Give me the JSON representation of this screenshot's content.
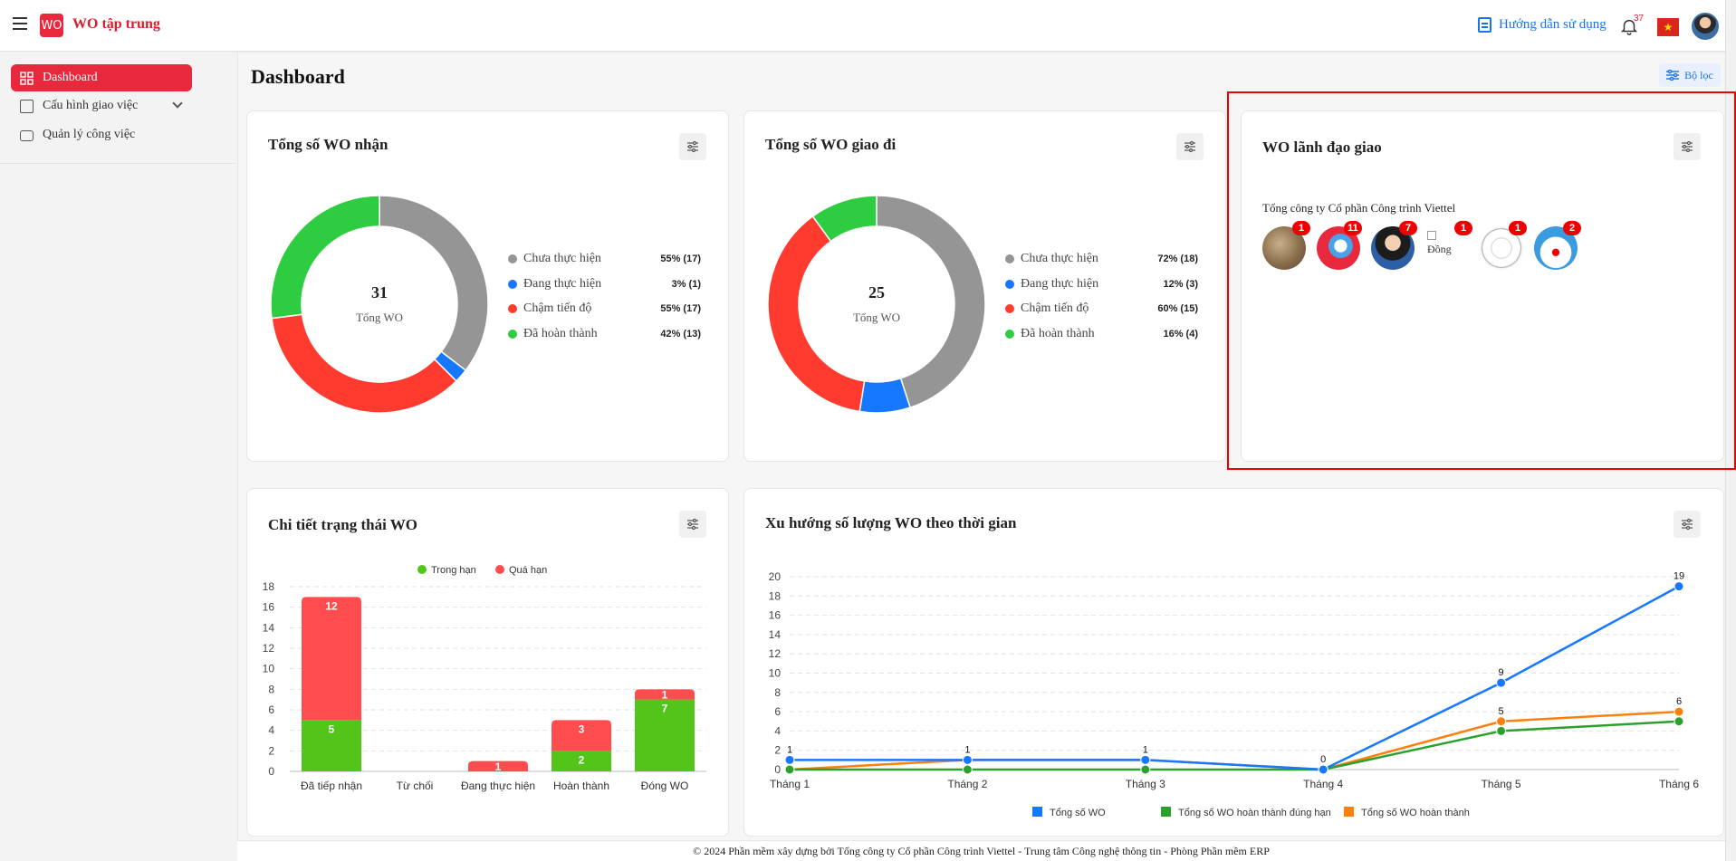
{
  "header": {
    "app_title": "WO tập trung",
    "logo_text": "WO",
    "help_label": "Hướng dẫn sử dụng",
    "notification_count": "37",
    "flag_icon": "vietnam-flag-icon"
  },
  "sidebar": {
    "items": [
      {
        "label": "Dashboard",
        "icon": "grid-icon"
      },
      {
        "label": "Cấu hình giao việc",
        "icon": "config-icon"
      },
      {
        "label": "Quản lý công việc",
        "icon": "briefcase-icon"
      }
    ]
  },
  "page": {
    "title": "Dashboard",
    "filter_label": "Bộ lọc"
  },
  "received_card": {
    "title": "Tổng số WO nhận",
    "center_value": "31",
    "center_label": "Tổng WO",
    "legend": [
      {
        "label": "Chưa thực hiện",
        "value": "55% (17)",
        "color": "#959595"
      },
      {
        "label": "Đang thực hiện",
        "value": "3% (1)",
        "color": "#1677ff"
      },
      {
        "label": "Chậm tiến độ",
        "value": "55% (17)",
        "color": "#ff3b30"
      },
      {
        "label": "Đã hoàn thành",
        "value": "42% (13)",
        "color": "#2ecc40"
      }
    ]
  },
  "assigned_card": {
    "title": "Tổng số WO giao đi",
    "center_value": "25",
    "center_label": "Tổng WO",
    "legend": [
      {
        "label": "Chưa thực hiện",
        "value": "72% (18)",
        "color": "#959595"
      },
      {
        "label": "Đang thực hiện",
        "value": "12% (3)",
        "color": "#1677ff"
      },
      {
        "label": "Chậm tiến độ",
        "value": "60% (15)",
        "color": "#ff3b30"
      },
      {
        "label": "Đã hoàn thành",
        "value": "16% (4)",
        "color": "#2ecc40"
      }
    ]
  },
  "leader_card": {
    "title": "WO lãnh đạo giao",
    "org_name": "Tổng công ty Cổ phần Công trình Viettel",
    "leaders": [
      {
        "badge": "1"
      },
      {
        "badge": "11"
      },
      {
        "badge": "7"
      },
      {
        "badge": "1",
        "alt_text": "Đồng"
      },
      {
        "badge": "1"
      },
      {
        "badge": "2"
      }
    ]
  },
  "footer": {
    "text": "© 2024 Phần mềm xây dựng bởi Tổng công ty Cổ phần Công trình Viettel - Trung tâm Công nghệ thông tin - Phòng Phần mềm ERP"
  },
  "chart_data": [
    {
      "type": "pie",
      "title": "Tổng số WO nhận",
      "labels": [
        "Chưa thực hiện",
        "Đang thực hiện",
        "Chậm tiến độ",
        "Đã hoàn thành"
      ],
      "values": [
        17,
        1,
        17,
        13
      ],
      "colors": [
        "#959595",
        "#1677ff",
        "#ff3b30",
        "#2ecc40"
      ]
    },
    {
      "type": "pie",
      "title": "Tổng số WO giao đi",
      "labels": [
        "Chưa thực hiện",
        "Đang thực hiện",
        "Chậm tiến độ",
        "Đã hoàn thành"
      ],
      "values": [
        18,
        3,
        15,
        4
      ],
      "colors": [
        "#959595",
        "#1677ff",
        "#ff3b30",
        "#2ecc40"
      ]
    },
    {
      "type": "bar",
      "stacked": true,
      "title": "Chi tiết trạng thái WO",
      "categories": [
        "Đã tiếp nhận",
        "Từ chối",
        "Đang thực hiện",
        "Hoàn thành",
        "Đóng WO"
      ],
      "series": [
        {
          "name": "Trong hạn",
          "values": [
            5,
            0,
            0,
            2,
            7
          ],
          "color": "#52c41a"
        },
        {
          "name": "Quá hạn",
          "values": [
            12,
            0,
            1,
            3,
            1
          ],
          "color": "#ff4d4f"
        }
      ],
      "ylim": [
        0,
        18
      ],
      "yticks": [
        0,
        2,
        4,
        6,
        8,
        10,
        12,
        14,
        16,
        18
      ],
      "legend_position": "top"
    },
    {
      "type": "line",
      "title": "Xu hướng số lượng WO theo thời gian",
      "categories": [
        "Tháng 1",
        "Tháng 2",
        "Tháng 3",
        "Tháng 4",
        "Tháng 5",
        "Tháng 6"
      ],
      "series": [
        {
          "name": "Tổng số WO",
          "values": [
            1,
            1,
            1,
            0,
            9,
            19
          ],
          "color": "#1677ff"
        },
        {
          "name": "Tổng số WO hoàn thành đúng hạn",
          "values": [
            0,
            0,
            0,
            0,
            4,
            5
          ],
          "color": "#2ca02c"
        },
        {
          "name": "Tổng số WO hoàn thành",
          "values": [
            0,
            1,
            1,
            0,
            5,
            6
          ],
          "color": "#ff7f0e"
        }
      ],
      "ylim": [
        0,
        20
      ],
      "yticks": [
        0,
        2,
        4,
        6,
        8,
        10,
        12,
        14,
        16,
        18,
        20
      ],
      "legend_position": "bottom"
    }
  ]
}
